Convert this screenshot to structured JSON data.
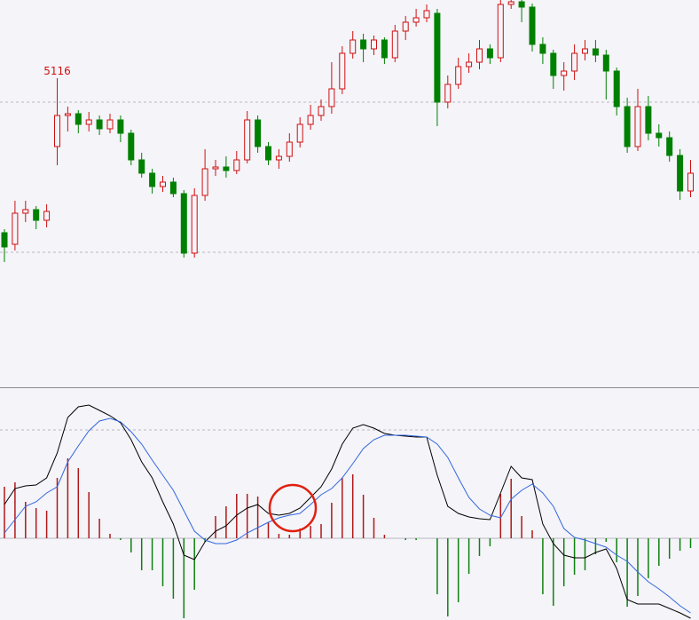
{
  "chart_data": [
    {
      "type": "candlestick",
      "open": [
        4942,
        4929,
        4964,
        4968,
        4956,
        5039,
        5074,
        5076,
        5064,
        5069,
        5059,
        5069,
        5054,
        5024,
        5009,
        4994,
        4999,
        4986,
        4919,
        4984,
        5014,
        5016,
        5012,
        5024,
        5069,
        5039,
        5024,
        5028,
        5044,
        5064,
        5074,
        5084,
        5104,
        5144,
        5159,
        5149,
        5159,
        5139,
        5169,
        5179,
        5184,
        5189,
        5089,
        5109,
        5129,
        5134,
        5149,
        5139,
        5199,
        5202,
        5196,
        5154,
        5144,
        5119,
        5124,
        5144,
        5149,
        5142,
        5124,
        5084,
        5039,
        5084,
        5054,
        5049,
        5029,
        4989
      ],
      "high": [
        4946,
        4978,
        4978,
        4972,
        4974,
        5116,
        5084,
        5080,
        5078,
        5074,
        5076,
        5074,
        5058,
        5032,
        5014,
        5006,
        5004,
        4990,
        4992,
        5036,
        5024,
        5028,
        5034,
        5079,
        5074,
        5044,
        5036,
        5054,
        5072,
        5086,
        5092,
        5134,
        5152,
        5169,
        5166,
        5164,
        5162,
        5176,
        5186,
        5194,
        5199,
        5194,
        5119,
        5139,
        5144,
        5159,
        5154,
        5204,
        5204,
        5204,
        5200,
        5162,
        5148,
        5134,
        5154,
        5159,
        5159,
        5148,
        5128,
        5094,
        5104,
        5096,
        5064,
        5056,
        5036,
        5024
      ],
      "low": [
        4909,
        4922,
        4954,
        4946,
        4948,
        5018,
        5056,
        5054,
        5056,
        5052,
        5054,
        5044,
        5018,
        5004,
        4986,
        4988,
        4982,
        4914,
        4914,
        4978,
        5006,
        5004,
        5008,
        5020,
        5032,
        5018,
        5014,
        5022,
        5038,
        5058,
        5068,
        5076,
        5098,
        5138,
        5134,
        5142,
        5132,
        5134,
        5159,
        5174,
        5179,
        5062,
        5082,
        5104,
        5122,
        5126,
        5132,
        5134,
        5194,
        5179,
        5146,
        5132,
        5104,
        5102,
        5114,
        5136,
        5134,
        5092,
        5074,
        5032,
        5034,
        5046,
        5039,
        5022,
        4979,
        4982
      ],
      "close": [
        4926,
        4964,
        4968,
        4956,
        4966,
        5074,
        5076,
        5064,
        5069,
        5059,
        5069,
        5054,
        5024,
        5009,
        4994,
        4999,
        4986,
        4919,
        4984,
        5014,
        5016,
        5012,
        5024,
        5069,
        5039,
        5024,
        5028,
        5044,
        5064,
        5074,
        5084,
        5104,
        5144,
        5159,
        5149,
        5159,
        5139,
        5169,
        5179,
        5184,
        5192,
        5089,
        5109,
        5129,
        5134,
        5149,
        5139,
        5199,
        5202,
        5196,
        5154,
        5144,
        5119,
        5124,
        5144,
        5149,
        5142,
        5124,
        5084,
        5039,
        5084,
        5054,
        5049,
        5029,
        4989,
        5009
      ],
      "high_labels": [
        null,
        null,
        null,
        null,
        null,
        "5116",
        null,
        null,
        null,
        null,
        null,
        null,
        null,
        null,
        null,
        null,
        null,
        null,
        null,
        null,
        null,
        null,
        null,
        null,
        null,
        null,
        null,
        null,
        null,
        null,
        null,
        null,
        null,
        null,
        null,
        null,
        null,
        null,
        null,
        null,
        null,
        null,
        null,
        null,
        null,
        null,
        null,
        null,
        null,
        null,
        null,
        null,
        null,
        null,
        null,
        null,
        null,
        null,
        null,
        null,
        null,
        null,
        null,
        null,
        null,
        null
      ],
      "ylim": [
        4769,
        5204
      ],
      "grid_lines": [
        4920,
        5089
      ],
      "up_color": "#d01010",
      "down_color": "#008000"
    },
    {
      "type": "macd",
      "lines": [
        {
          "color": "#000000",
          "values": [
            38,
            56,
            59,
            60,
            68,
            96,
            136,
            148,
            150,
            144,
            138,
            130,
            111,
            86,
            68,
            41,
            16,
            -19,
            -24,
            -4,
            8,
            14,
            26,
            34,
            38,
            28,
            26,
            28,
            34,
            46,
            58,
            78,
            106,
            124,
            128,
            124,
            118,
            116,
            115,
            114,
            114,
            71,
            36,
            28,
            24,
            22,
            21,
            51,
            81,
            68,
            66,
            16,
            -6,
            -19,
            -22,
            -22,
            -16,
            -12,
            -34,
            -69,
            -74,
            -74,
            -74,
            -79,
            -84,
            -90
          ]
        },
        {
          "color": "#3366dd",
          "values": [
            6,
            21,
            36,
            41,
            51,
            58,
            86,
            104,
            121,
            132,
            135,
            131,
            120,
            106,
            88,
            71,
            54,
            31,
            8,
            -2,
            -6,
            -6,
            -2,
            6,
            12,
            18,
            23,
            26,
            28,
            38,
            49,
            56,
            68,
            84,
            101,
            111,
            116,
            116,
            116,
            115,
            114,
            106,
            91,
            68,
            46,
            33,
            26,
            23,
            44,
            54,
            61,
            51,
            36,
            11,
            1,
            -2,
            -6,
            -10,
            -19,
            -26,
            -38,
            -49,
            -57,
            -66,
            -76,
            -84
          ]
        }
      ],
      "histogram": {
        "values": [
          58,
          63,
          41,
          34,
          31,
          68,
          90,
          79,
          52,
          22,
          5,
          -2,
          -16,
          -36,
          -36,
          -54,
          -68,
          -90,
          -58,
          -4,
          25,
          36,
          50,
          50,
          47,
          18,
          5,
          4,
          11,
          14,
          16,
          40,
          68,
          72,
          49,
          23,
          4,
          0,
          -2,
          -2,
          0,
          -63,
          -88,
          -72,
          -40,
          -20,
          -9,
          50,
          67,
          25,
          9,
          -63,
          -76,
          -54,
          -41,
          -36,
          -18,
          -4,
          -27,
          -77,
          -65,
          -45,
          -31,
          -23,
          -14,
          -11
        ],
        "up_color": "#b01818",
        "down_color": "#108010"
      },
      "ylim": [
        -92,
        169
      ],
      "grid_lines": [
        0,
        122
      ]
    }
  ]
}
